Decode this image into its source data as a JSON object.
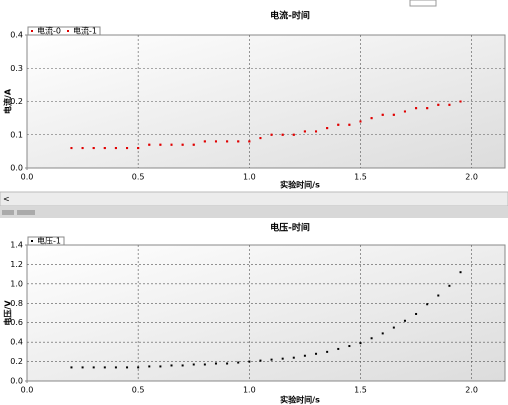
{
  "chart_data": [
    {
      "type": "scatter",
      "title": "电流-时间",
      "x_label": "实验时间/s",
      "y_label": "电流/A",
      "x": [
        0.2,
        0.25,
        0.3,
        0.35,
        0.4,
        0.45,
        0.5,
        0.55,
        0.6,
        0.65,
        0.7,
        0.75,
        0.8,
        0.85,
        0.9,
        0.95,
        1.0,
        1.05,
        1.1,
        1.15,
        1.2,
        1.25,
        1.3,
        1.35,
        1.4,
        1.45,
        1.5,
        1.55,
        1.6,
        1.65,
        1.7,
        1.75,
        1.8,
        1.85,
        1.9,
        1.95
      ],
      "series": [
        {
          "name": "电流-0",
          "color": "#e00000",
          "values": [
            0.06,
            0.06,
            0.06,
            0.06,
            0.06,
            0.06,
            0.06,
            0.07,
            0.07,
            0.07,
            0.07,
            0.07,
            0.08,
            0.08,
            0.08,
            0.08,
            0.08,
            0.09,
            0.1,
            0.1,
            0.1,
            0.11,
            0.11,
            0.12,
            0.13,
            0.13,
            0.14,
            0.15,
            0.16,
            0.16,
            0.17,
            0.18,
            0.18,
            0.19,
            0.19,
            0.2
          ]
        },
        {
          "name": "电流-1",
          "color": "#e00000",
          "values": [
            0.06,
            0.06,
            0.06,
            0.06,
            0.06,
            0.06,
            0.06,
            0.07,
            0.07,
            0.07,
            0.07,
            0.07,
            0.08,
            0.08,
            0.08,
            0.08,
            0.08,
            0.09,
            0.1,
            0.1,
            0.1,
            0.11,
            0.11,
            0.12,
            0.13,
            0.13,
            0.14,
            0.15,
            0.16,
            0.16,
            0.17,
            0.18,
            0.18,
            0.19,
            0.19,
            0.2
          ]
        }
      ],
      "xlim": [
        0,
        2.15
      ],
      "xticks": [
        {
          "value": 0,
          "label": "0.0"
        },
        {
          "value": 0.5,
          "label": "0.5"
        },
        {
          "value": 1,
          "label": "1.0"
        },
        {
          "value": 1.5,
          "label": "1.5"
        },
        {
          "value": 2,
          "label": "2.0"
        }
      ],
      "ylim": [
        0,
        0.4
      ],
      "yticks": [
        {
          "value": 0,
          "label": "0.0"
        },
        0.1,
        0.2,
        0.3,
        0.4
      ],
      "grid": true
    },
    {
      "type": "scatter",
      "title": "电压-时间",
      "x_label": "实验时间/s",
      "y_label": "电压/V",
      "x": [
        0.2,
        0.25,
        0.3,
        0.35,
        0.4,
        0.45,
        0.5,
        0.55,
        0.6,
        0.65,
        0.7,
        0.75,
        0.8,
        0.85,
        0.9,
        0.95,
        1.0,
        1.05,
        1.1,
        1.15,
        1.2,
        1.25,
        1.3,
        1.35,
        1.4,
        1.45,
        1.5,
        1.55,
        1.6,
        1.65,
        1.7,
        1.75,
        1.8,
        1.85,
        1.9,
        1.95
      ],
      "series": [
        {
          "name": "电压-1",
          "color": "#000000",
          "values": [
            0.14,
            0.14,
            0.14,
            0.14,
            0.14,
            0.14,
            0.14,
            0.15,
            0.15,
            0.16,
            0.16,
            0.17,
            0.17,
            0.18,
            0.18,
            0.19,
            0.2,
            0.21,
            0.22,
            0.23,
            0.24,
            0.26,
            0.28,
            0.3,
            0.33,
            0.36,
            0.39,
            0.44,
            0.49,
            0.55,
            0.62,
            0.69,
            0.79,
            0.88,
            0.98,
            1.12
          ]
        }
      ],
      "xlim": [
        0,
        2.15
      ],
      "xticks": [
        {
          "value": 0,
          "label": "0.0"
        },
        {
          "value": 0.5,
          "label": "0.5"
        },
        {
          "value": 1,
          "label": "1.0"
        },
        {
          "value": 1.5,
          "label": "1.5"
        },
        {
          "value": 2,
          "label": "2.0"
        }
      ],
      "ylim": [
        0,
        1.4
      ],
      "yticks": [
        {
          "value": 0,
          "label": "0.0"
        },
        0.2,
        0.4,
        0.6,
        0.8,
        {
          "value": 1,
          "label": "1.0"
        },
        1.2,
        1.4
      ],
      "grid": true
    }
  ]
}
